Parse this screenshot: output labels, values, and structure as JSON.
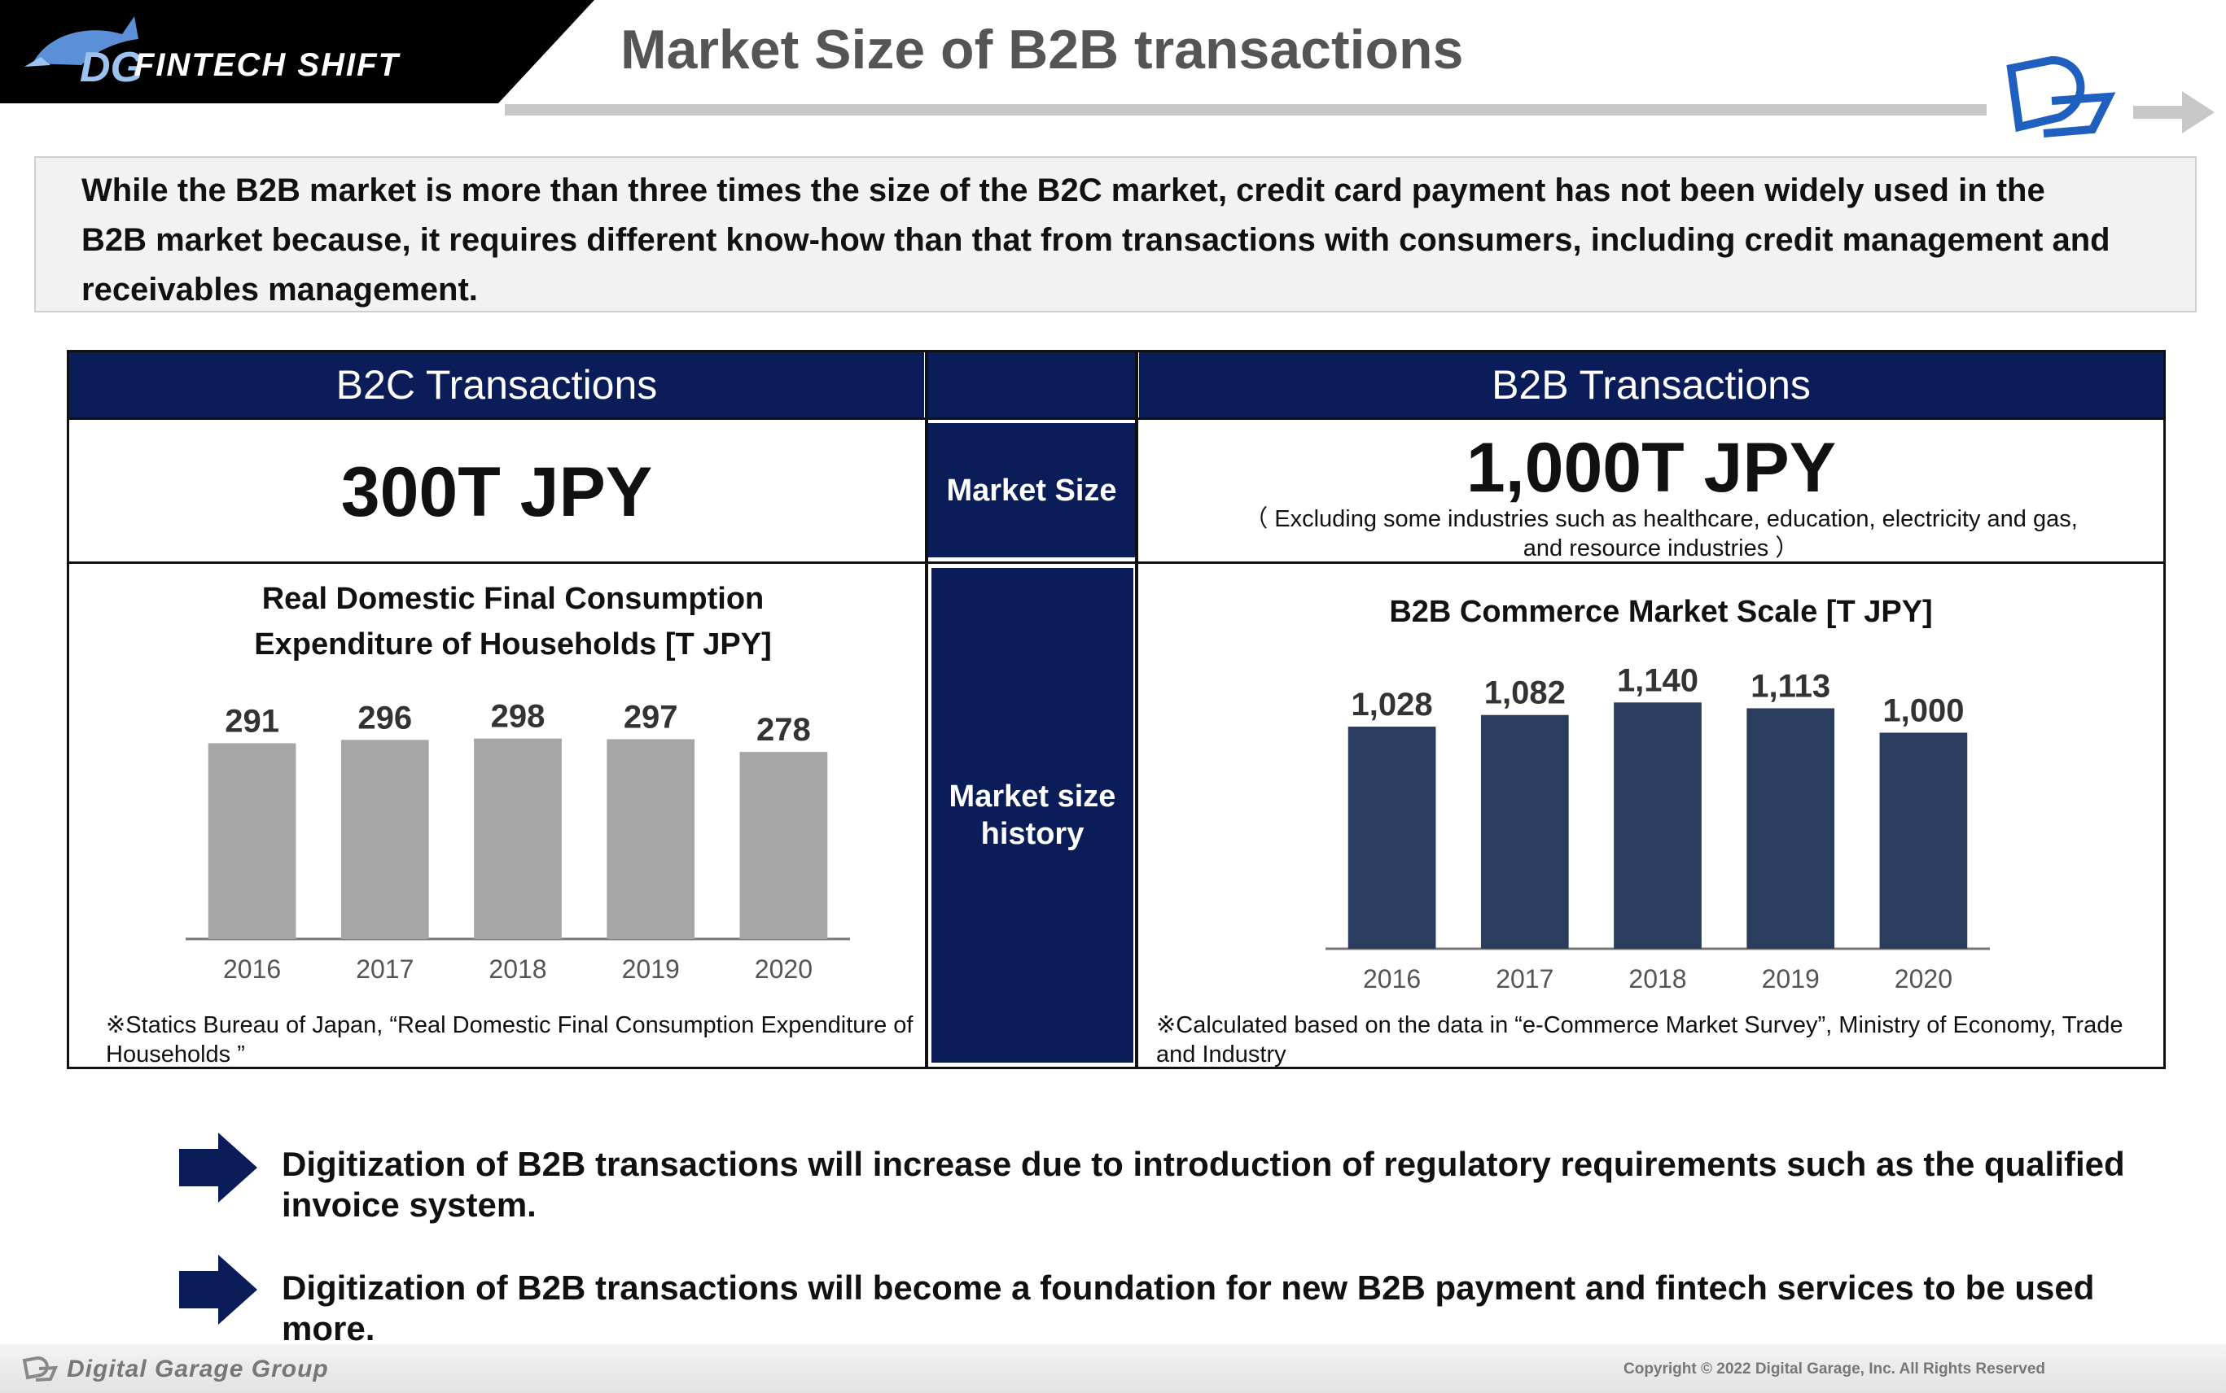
{
  "header": {
    "brand": "FINTECH SHIFT",
    "title": "Market Size of B2B transactions"
  },
  "intro": "While the B2B market is more than three times the size of the B2C market, credit card payment has not been widely used in the B2B market because, it requires different know-how than that from transactions with consumers, including credit management and receivables management.",
  "table": {
    "b2c_header": "B2C Transactions",
    "b2b_header": "B2B Transactions",
    "market_size_label": "Market Size",
    "market_history_label": "Market size history",
    "b2c_size": "300T JPY",
    "b2b_size": "1,000T JPY",
    "b2b_size_note": "（ Excluding some industries such as healthcare, education, electricity and gas, and resource industries ）",
    "b2c_source": "※Statics Bureau of Japan, “Real Domestic Final Consumption Expenditure of Households ”",
    "b2b_source": "※Calculated based on the data in “e-Commerce Market Survey”, Ministry of Economy, Trade and Industry"
  },
  "colors": {
    "navy": "#0b1d59",
    "b2c_bar": "#a6a6a6",
    "b2b_bar": "#2b3d5e"
  },
  "chart_data": [
    {
      "type": "bar",
      "title": "Real Domestic Final Consumption Expenditure of Households [T JPY]",
      "categories": [
        "2016",
        "2017",
        "2018",
        "2019",
        "2020"
      ],
      "values": [
        291,
        296,
        298,
        297,
        278
      ],
      "value_labels": [
        "291",
        "296",
        "298",
        "297",
        "278"
      ],
      "ylim": [
        0,
        300
      ],
      "grid": false,
      "legend": "none"
    },
    {
      "type": "bar",
      "title": "B2B Commerce Market Scale [T JPY]",
      "categories": [
        "2016",
        "2017",
        "2018",
        "2019",
        "2020"
      ],
      "values": [
        1028,
        1082,
        1140,
        1113,
        1000
      ],
      "value_labels": [
        "1,028",
        "1,082",
        "1,140",
        "1,113",
        "1,000"
      ],
      "ylim": [
        0,
        1160
      ],
      "grid": false,
      "legend": "none"
    }
  ],
  "bullets": [
    "Digitization of B2B transactions will increase due to introduction of regulatory requirements such as the qualified invoice system.",
    "Digitization of B2B transactions will become a foundation for new B2B payment and fintech services to be used more."
  ],
  "footer": {
    "brand": "Digital Garage Group",
    "copyright": "Copyright © 2022 Digital Garage, Inc. All Rights Reserved"
  }
}
